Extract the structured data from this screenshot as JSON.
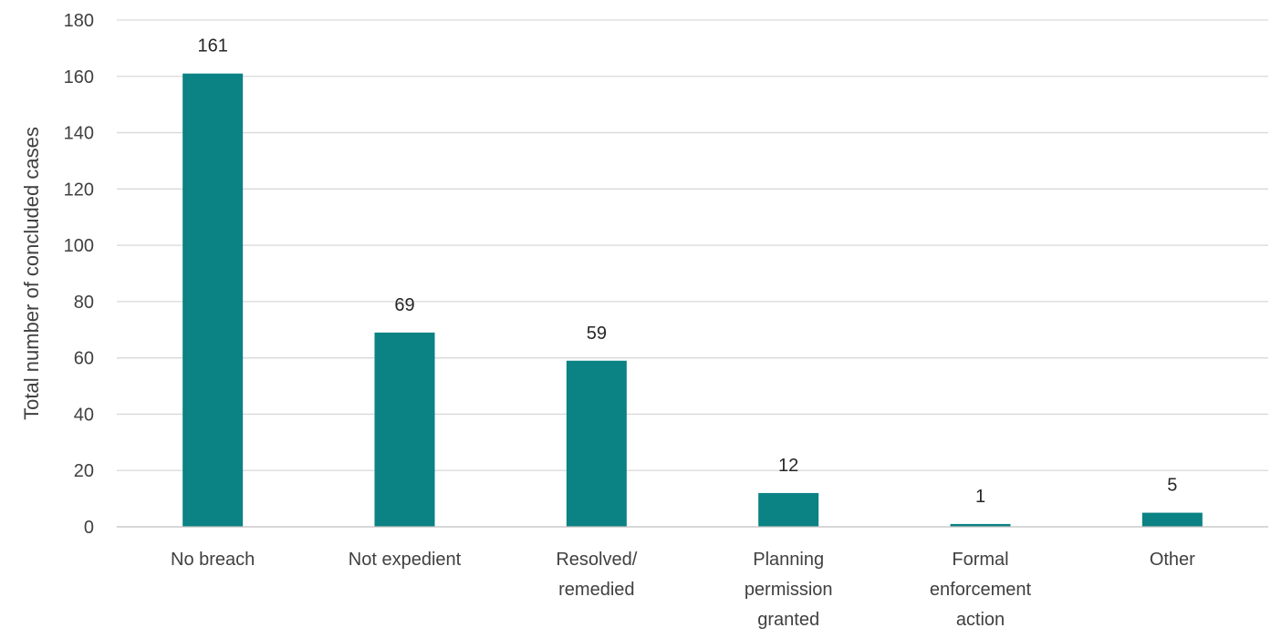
{
  "chart_data": {
    "type": "bar",
    "categories": [
      [
        "No breach"
      ],
      [
        "Not expedient"
      ],
      [
        "Resolved/",
        "remedied"
      ],
      [
        "Planning",
        "permission",
        "granted"
      ],
      [
        "Formal",
        "enforcement",
        "action"
      ],
      [
        "Other"
      ]
    ],
    "values": [
      161,
      69,
      59,
      12,
      1,
      5
    ],
    "data_labels": [
      "161",
      "69",
      "59",
      "12",
      "1",
      "5"
    ],
    "title": "",
    "xlabel": "",
    "ylabel": "Total number of concluded cases",
    "ylim": [
      0,
      180
    ],
    "yticks": [
      0,
      20,
      40,
      60,
      80,
      100,
      120,
      140,
      160,
      180
    ],
    "grid": true,
    "legend": "none",
    "bar_color": "#0b8284"
  }
}
